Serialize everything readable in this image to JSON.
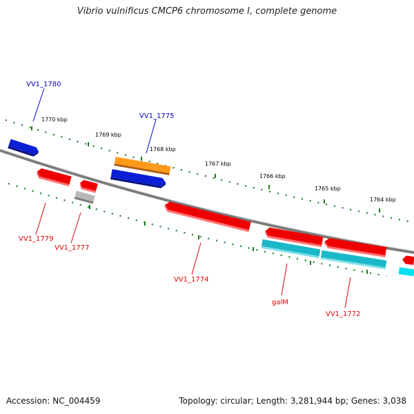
{
  "title": "Vibrio vulnificus CMCP6 chromosome I, complete genome",
  "footer": {
    "accession": "Accession: NC_004459",
    "topology": "Topology: circular; Length: 3,281,944 bp; Genes: 3,038"
  },
  "ticks": [
    {
      "label": "1770 kbp"
    },
    {
      "label": "1769 kbp"
    },
    {
      "label": "1768 kbp"
    },
    {
      "label": "1767 kbp"
    },
    {
      "label": "1766 kbp"
    },
    {
      "label": "1765 kbp"
    },
    {
      "label": "1764 kbp"
    }
  ],
  "gene_labels": [
    {
      "text": "VV1_1780",
      "color": "#0000cc"
    },
    {
      "text": "VV1_1775",
      "color": "#0000cc"
    },
    {
      "text": "VV1_1779",
      "color": "#dd0000"
    },
    {
      "text": "VV1_1777",
      "color": "#dd0000"
    },
    {
      "text": "VV1_1774",
      "color": "#dd0000"
    },
    {
      "text": "galM",
      "color": "#dd0000"
    },
    {
      "text": "VV1_1772",
      "color": "#dd0000"
    }
  ],
  "colors": {
    "backbone": "#7a7a7a",
    "tick": "#1a7a1a",
    "blue": "#0b1fd6",
    "orange": "#ff9a1a",
    "red": "#ee0000",
    "grey": "#b8b8b8",
    "cyan": "#1ab8c8"
  }
}
